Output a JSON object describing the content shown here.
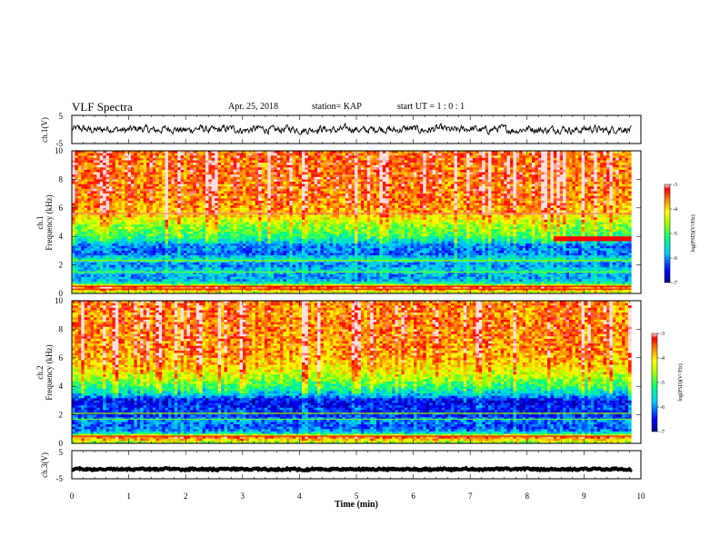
{
  "header": {
    "title": "VLF Spectra",
    "date": "Apr. 25, 2018",
    "station": "station= KAP",
    "start": "start  UT =   1 : 0  : 1"
  },
  "chart_data": [
    {
      "type": "line",
      "name": "ch1-waveform",
      "ylabel": "ch.1(V)",
      "ylim": [
        -5,
        5
      ],
      "ytick_labels": [
        "5",
        "-5"
      ],
      "xlim": [
        0,
        10
      ],
      "x_end": 9.83,
      "line_color": "#000000",
      "mean": 0,
      "amplitude": 1.2
    },
    {
      "type": "heatmap",
      "name": "ch1-spectrogram",
      "ylabel": "ch.1\nFrequency  (kHz)",
      "ylim": [
        0,
        10
      ],
      "ytick_labels": [
        "0",
        "2",
        "4",
        "6",
        "8",
        "10"
      ],
      "xlim": [
        0,
        10
      ],
      "x_end": 9.83,
      "colorbar": {
        "label": "log(PSD)(V²/Hz)",
        "range": [
          -7,
          -3
        ],
        "tick_labels": [
          "-3",
          "-4",
          "-5",
          "-6",
          "-7"
        ]
      },
      "profile": [
        {
          "f": 0.0,
          "v": -4.6
        },
        {
          "f": 0.4,
          "v": -3.4
        },
        {
          "f": 0.8,
          "v": -5.8
        },
        {
          "f": 1.2,
          "v": -6.0
        },
        {
          "f": 1.6,
          "v": -5.6
        },
        {
          "f": 2.0,
          "v": -6.1
        },
        {
          "f": 2.4,
          "v": -5.5
        },
        {
          "f": 2.8,
          "v": -6.2
        },
        {
          "f": 3.4,
          "v": -6.0
        },
        {
          "f": 4.0,
          "v": -5.1
        },
        {
          "f": 4.8,
          "v": -4.6
        },
        {
          "f": 5.6,
          "v": -3.9
        },
        {
          "f": 6.4,
          "v": -3.6
        },
        {
          "f": 8.0,
          "v": -3.5
        },
        {
          "f": 10.0,
          "v": -3.5
        }
      ],
      "lines": [
        {
          "f": 5.6,
          "v": -3.1
        },
        {
          "f": 2.3,
          "v": -4.6
        },
        {
          "f": 1.5,
          "v": -4.8
        },
        {
          "f": 0.5,
          "v": -3.2
        },
        {
          "f": 0.3,
          "v": -3.3
        }
      ],
      "emission": {
        "t0": 8.45,
        "t1": 9.83,
        "f0": 3.7,
        "f1": 4.0,
        "v": -3.2
      }
    },
    {
      "type": "heatmap",
      "name": "ch2-spectrogram",
      "ylabel": "ch.2\nFrequency  (kHz)",
      "ylim": [
        0,
        10
      ],
      "ytick_labels": [
        "0",
        "2",
        "4",
        "6",
        "8",
        "10"
      ],
      "xlim": [
        0,
        10
      ],
      "x_end": 9.83,
      "colorbar": {
        "label": "log(PSD)(V²/Hz)",
        "range": [
          -7,
          -3
        ],
        "tick_labels": [
          "-3",
          "-4",
          "-5",
          "-6",
          "-7"
        ]
      },
      "profile": [
        {
          "f": 0.0,
          "v": -4.8
        },
        {
          "f": 0.4,
          "v": -3.5
        },
        {
          "f": 0.8,
          "v": -6.0
        },
        {
          "f": 1.2,
          "v": -6.3
        },
        {
          "f": 1.6,
          "v": -6.0
        },
        {
          "f": 2.0,
          "v": -6.5
        },
        {
          "f": 2.4,
          "v": -6.4
        },
        {
          "f": 3.0,
          "v": -6.6
        },
        {
          "f": 3.4,
          "v": -5.8
        },
        {
          "f": 4.0,
          "v": -5.1
        },
        {
          "f": 4.8,
          "v": -4.4
        },
        {
          "f": 5.6,
          "v": -3.9
        },
        {
          "f": 6.4,
          "v": -3.7
        },
        {
          "f": 8.0,
          "v": -3.6
        },
        {
          "f": 10.0,
          "v": -3.6
        }
      ],
      "lines": [
        {
          "f": 2.1,
          "v": -4.6
        },
        {
          "f": 1.7,
          "v": -4.8
        },
        {
          "f": 0.5,
          "v": -3.3
        }
      ],
      "emission": null
    },
    {
      "type": "line",
      "name": "ch3-waveform",
      "ylabel": "ch.3(V)",
      "ylim": [
        -5,
        5
      ],
      "ytick_labels": [
        "5",
        "-5"
      ],
      "xlim": [
        0,
        10
      ],
      "x_end": 9.83,
      "line_color": "#000000",
      "mean": -1.6,
      "amplitude": 0.25
    }
  ],
  "x_axis": {
    "label": "Time  (min)",
    "tick_labels": [
      "0",
      "1",
      "2",
      "3",
      "4",
      "5",
      "6",
      "7",
      "8",
      "9",
      "10"
    ]
  }
}
